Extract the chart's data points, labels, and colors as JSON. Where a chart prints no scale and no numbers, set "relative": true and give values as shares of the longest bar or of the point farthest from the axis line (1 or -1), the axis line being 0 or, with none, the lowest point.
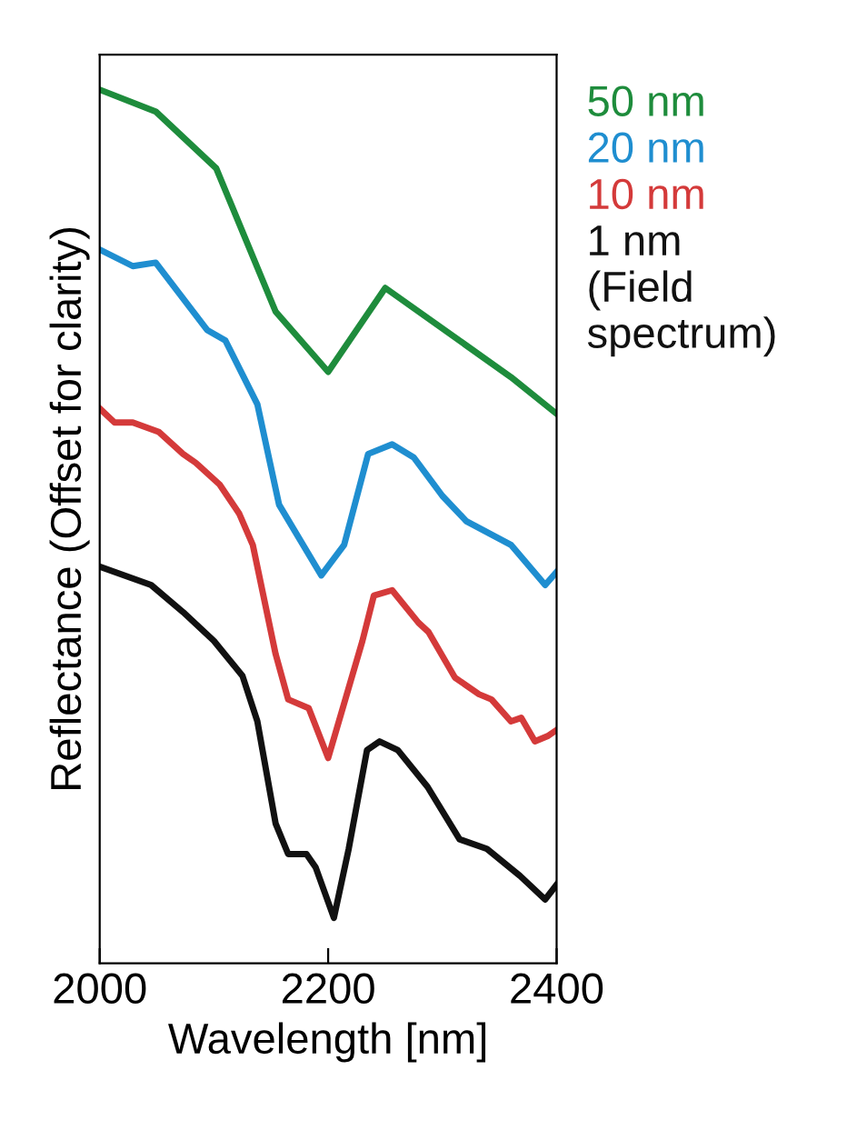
{
  "chart_data": {
    "type": "line",
    "relative": true,
    "xlabel": "Wavelength [nm]",
    "ylabel": "Reflectance (Offset for clarity)",
    "xlim": [
      2000,
      2400
    ],
    "xticks": [
      2000,
      2200,
      2400
    ],
    "legend": "right",
    "grid": false,
    "series": [
      {
        "name": "50 nm",
        "color": "#1e8c3c",
        "x": [
          2000,
          2049,
          2102,
          2154,
          2200,
          2250,
          2360,
          2400
        ],
        "values": [
          1.0,
          0.975,
          0.91,
          0.746,
          0.677,
          0.773,
          0.671,
          0.629
        ]
      },
      {
        "name": "20 nm",
        "color": "#1f8ed0",
        "x": [
          2000,
          2029,
          2049,
          2094,
          2110,
          2138,
          2157,
          2194,
          2214,
          2235,
          2256,
          2275,
          2300,
          2321,
          2360,
          2390,
          2400
        ],
        "values": [
          0.817,
          0.798,
          0.802,
          0.725,
          0.713,
          0.64,
          0.525,
          0.444,
          0.479,
          0.583,
          0.594,
          0.579,
          0.535,
          0.506,
          0.479,
          0.433,
          0.448
        ]
      },
      {
        "name": "10 nm",
        "color": "#d43a3a",
        "x": [
          2000,
          2013,
          2029,
          2052,
          2073,
          2084,
          2105,
          2122,
          2134,
          2154,
          2165,
          2183,
          2200,
          2230,
          2240,
          2256,
          2279,
          2288,
          2311,
          2332,
          2343,
          2360,
          2369,
          2381,
          2392,
          2400
        ],
        "values": [
          0.635,
          0.619,
          0.619,
          0.608,
          0.583,
          0.573,
          0.548,
          0.515,
          0.479,
          0.354,
          0.302,
          0.292,
          0.235,
          0.369,
          0.421,
          0.427,
          0.39,
          0.379,
          0.327,
          0.308,
          0.302,
          0.277,
          0.281,
          0.254,
          0.26,
          0.267
        ]
      },
      {
        "name": "1 nm\n(Field\nspectrum)",
        "color": "#111111",
        "x": [
          2000,
          2045,
          2073,
          2100,
          2125,
          2138,
          2154,
          2165,
          2181,
          2189,
          2205,
          2218,
          2234,
          2245,
          2261,
          2287,
          2315,
          2339,
          2368,
          2390,
          2400
        ],
        "values": [
          0.454,
          0.433,
          0.402,
          0.369,
          0.329,
          0.277,
          0.16,
          0.125,
          0.125,
          0.11,
          0.052,
          0.131,
          0.244,
          0.254,
          0.244,
          0.202,
          0.142,
          0.131,
          0.1,
          0.073,
          0.09
        ]
      }
    ]
  }
}
